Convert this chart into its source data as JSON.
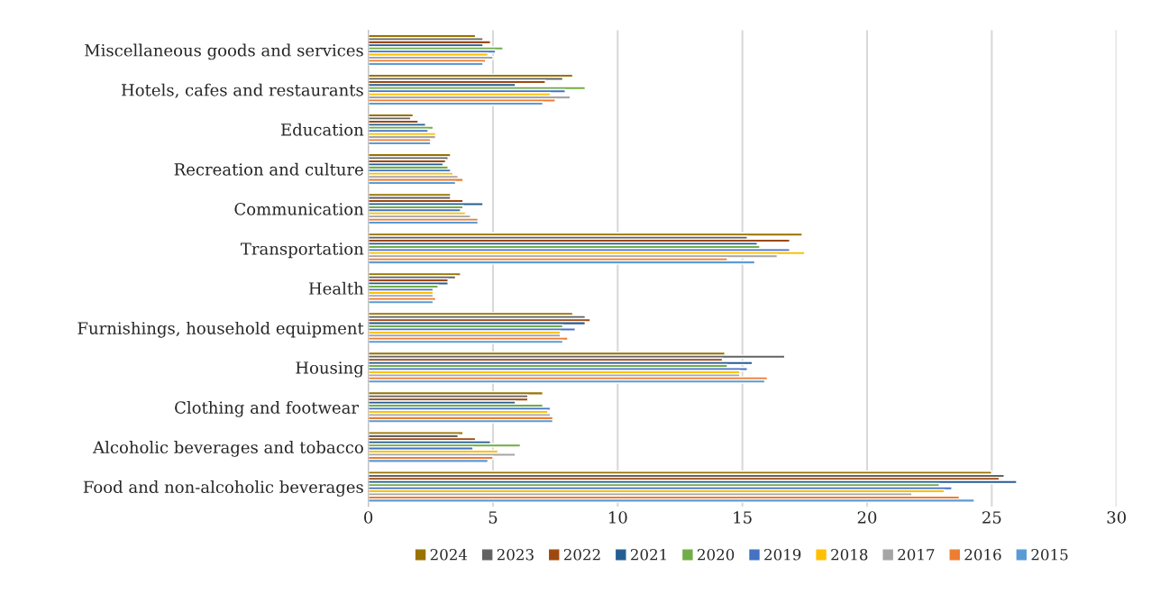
{
  "chart_data": {
    "type": "bar",
    "orientation": "horizontal",
    "categories": [
      "Miscellaneous goods and services",
      "Hotels, cafes and restaurants",
      "Education",
      "Recreation and culture",
      "Communication",
      "Transportation",
      "Health",
      "Furnishings, household equipment",
      "Housing",
      "Clothing and footwear ",
      "Alcoholic beverages and tobacco",
      "Food and non-alcoholic beverages"
    ],
    "series": [
      {
        "name": "2024",
        "color": "#997300",
        "values": [
          4.3,
          8.2,
          1.8,
          3.3,
          3.3,
          17.4,
          3.7,
          8.2,
          14.3,
          7.0,
          3.8,
          25.0
        ]
      },
      {
        "name": "2023",
        "color": "#636363",
        "values": [
          4.6,
          7.8,
          1.7,
          3.2,
          3.3,
          15.2,
          3.5,
          8.7,
          16.7,
          6.4,
          3.6,
          25.5
        ]
      },
      {
        "name": "2022",
        "color": "#9e480e",
        "values": [
          4.9,
          7.1,
          2.0,
          3.1,
          3.8,
          16.9,
          3.2,
          8.9,
          14.2,
          6.4,
          4.3,
          25.3
        ]
      },
      {
        "name": "2021",
        "color": "#255e91",
        "values": [
          4.6,
          5.9,
          2.3,
          3.0,
          4.6,
          15.6,
          3.2,
          8.7,
          15.4,
          5.9,
          4.9,
          26.0
        ]
      },
      {
        "name": "2020",
        "color": "#70ad47",
        "values": [
          5.4,
          8.7,
          2.6,
          3.2,
          3.8,
          15.7,
          2.8,
          7.8,
          14.4,
          7.0,
          6.1,
          22.9
        ]
      },
      {
        "name": "2019",
        "color": "#4472c4",
        "values": [
          5.1,
          7.9,
          2.4,
          3.3,
          3.7,
          16.9,
          2.6,
          8.3,
          15.2,
          7.3,
          4.2,
          23.4
        ]
      },
      {
        "name": "2018",
        "color": "#ffc000",
        "values": [
          4.8,
          7.3,
          2.7,
          3.4,
          3.9,
          17.5,
          2.6,
          7.7,
          14.9,
          7.2,
          5.2,
          23.1
        ]
      },
      {
        "name": "2017",
        "color": "#a5a5a5",
        "values": [
          5.0,
          8.1,
          2.7,
          3.6,
          4.1,
          16.4,
          2.6,
          7.7,
          14.9,
          7.3,
          5.9,
          21.8
        ]
      },
      {
        "name": "2016",
        "color": "#ed7d31",
        "values": [
          4.7,
          7.5,
          2.5,
          3.8,
          4.4,
          14.4,
          2.7,
          8.0,
          16.0,
          7.4,
          5.0,
          23.7
        ]
      },
      {
        "name": "2015",
        "color": "#5b9bd5",
        "values": [
          4.6,
          7.0,
          2.5,
          3.5,
          4.4,
          15.5,
          2.6,
          7.8,
          15.9,
          7.4,
          4.8,
          24.3
        ]
      }
    ],
    "xlim": [
      0,
      30
    ],
    "xticks": [
      0,
      5,
      10,
      15,
      20,
      25,
      30
    ],
    "grid": "x",
    "legend": "bottom"
  }
}
